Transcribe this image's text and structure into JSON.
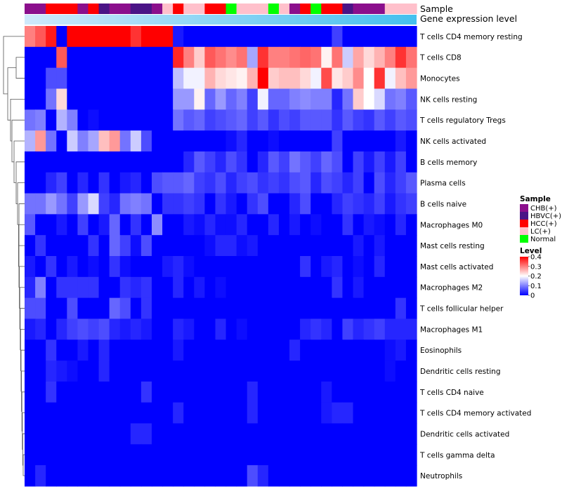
{
  "chart_data": {
    "type": "heatmap",
    "title": "",
    "annotation_labels": {
      "sample": "Sample",
      "gene_expression": "Gene expression level"
    },
    "rows": [
      "T cells CD4 memory resting",
      "T cells CD8",
      "Monocytes",
      "NK cells resting",
      "T cells regulatory  Tregs",
      "NK cells activated",
      "B cells memory",
      "Plasma cells",
      "B cells naive",
      "Macrophages M0",
      "Mast cells resting",
      "Mast cells activated",
      "Macrophages M2",
      "T cells follicular helper",
      "Macrophages M1",
      "Eosinophils",
      "Dendritic cells resting",
      "T cells CD4 naive",
      "T cells CD4 memory activated",
      "Dendritic cells activated",
      "T cells gamma delta",
      "Neutrophils"
    ],
    "sample_groups": [
      "CHB(+)",
      "CHB(+)",
      "HCC(+)",
      "HCC(+)",
      "HCC(+)",
      "CHB(+)",
      "HCC(+)",
      "HBVC(+)",
      "CHB(+)",
      "CHB(+)",
      "HBVC(+)",
      "HBVC(+)",
      "CHB(+)",
      "LC(+)",
      "HCC(+)",
      "LC(+)",
      "LC(+)",
      "HCC(+)",
      "HCC(+)",
      "Normal",
      "LC(+)",
      "LC(+)",
      "LC(+)",
      "Normal",
      "LC(+)",
      "CHB(+)",
      "HCC(+)",
      "Normal",
      "HCC(+)",
      "HCC(+)",
      "HBVC(+)",
      "CHB(+)",
      "CHB(+)",
      "CHB(+)",
      "LC(+)",
      "LC(+)",
      "LC(+)"
    ],
    "values": [
      [
        0.3,
        0.33,
        0.38,
        0.0,
        0.4,
        0.4,
        0.4,
        0.4,
        0.4,
        0.4,
        0.36,
        0.4,
        0.4,
        0.4,
        0.02,
        0.0,
        0.0,
        0.0,
        0.0,
        0.0,
        0.0,
        0.0,
        0.0,
        0.0,
        0.0,
        0.0,
        0.0,
        0.0,
        0.0,
        0.05,
        0.0,
        0.0,
        0.0,
        0.0,
        0.0,
        0.0,
        0.0
      ],
      [
        0.0,
        0.0,
        0.0,
        0.33,
        0.0,
        0.0,
        0.0,
        0.0,
        0.0,
        0.0,
        0.0,
        0.0,
        0.0,
        0.0,
        0.37,
        0.3,
        0.24,
        0.33,
        0.31,
        0.29,
        0.31,
        0.13,
        0.36,
        0.3,
        0.3,
        0.31,
        0.32,
        0.31,
        0.21,
        0.31,
        0.16,
        0.27,
        0.23,
        0.26,
        0.3,
        0.36,
        0.31
      ],
      [
        0.0,
        0.0,
        0.06,
        0.06,
        0.0,
        0.0,
        0.0,
        0.0,
        0.0,
        0.0,
        0.0,
        0.0,
        0.0,
        0.0,
        0.15,
        0.19,
        0.19,
        0.26,
        0.23,
        0.22,
        0.21,
        0.26,
        0.4,
        0.24,
        0.25,
        0.25,
        0.23,
        0.19,
        0.34,
        0.22,
        0.24,
        0.29,
        0.2,
        0.36,
        0.19,
        0.25,
        0.28
      ],
      [
        0.0,
        0.0,
        0.09,
        0.23,
        0.0,
        0.0,
        0.0,
        0.0,
        0.0,
        0.0,
        0.0,
        0.0,
        0.0,
        0.0,
        0.12,
        0.12,
        0.21,
        0.08,
        0.12,
        0.08,
        0.1,
        0.05,
        0.19,
        0.08,
        0.08,
        0.1,
        0.11,
        0.1,
        0.1,
        0.03,
        0.09,
        0.24,
        0.2,
        0.17,
        0.09,
        0.1,
        0.07
      ],
      [
        0.09,
        0.1,
        0.0,
        0.14,
        0.1,
        0.0,
        0.01,
        0.0,
        0.0,
        0.0,
        0.0,
        0.0,
        0.0,
        0.0,
        0.09,
        0.07,
        0.08,
        0.05,
        0.06,
        0.07,
        0.08,
        0.05,
        0.07,
        0.04,
        0.06,
        0.05,
        0.07,
        0.07,
        0.07,
        0.04,
        0.07,
        0.05,
        0.04,
        0.07,
        0.05,
        0.07,
        0.06
      ],
      [
        0.14,
        0.28,
        0.09,
        0.0,
        0.16,
        0.1,
        0.13,
        0.25,
        0.28,
        0.09,
        0.16,
        0.06,
        0.0,
        0.0,
        0.0,
        0.0,
        0.0,
        0.0,
        0.0,
        0.01,
        0.03,
        0.0,
        0.0,
        0.01,
        0.0,
        0.0,
        0.0,
        0.0,
        0.0,
        0.05,
        0.0,
        0.0,
        0.0,
        0.0,
        0.0,
        0.02,
        0.0
      ],
      [
        0.0,
        0.0,
        0.0,
        0.0,
        0.0,
        0.0,
        0.0,
        0.0,
        0.0,
        0.0,
        0.0,
        0.0,
        0.0,
        0.0,
        0.0,
        0.03,
        0.07,
        0.05,
        0.03,
        0.06,
        0.04,
        0.0,
        0.03,
        0.07,
        0.05,
        0.09,
        0.07,
        0.05,
        0.08,
        0.06,
        0.0,
        0.05,
        0.02,
        0.05,
        0.02,
        0.05,
        0.0
      ],
      [
        0.0,
        0.0,
        0.03,
        0.05,
        0.0,
        0.03,
        0.0,
        0.04,
        0.0,
        0.02,
        0.03,
        0.0,
        0.06,
        0.07,
        0.07,
        0.08,
        0.05,
        0.04,
        0.06,
        0.03,
        0.05,
        0.06,
        0.04,
        0.05,
        0.04,
        0.06,
        0.07,
        0.03,
        0.06,
        0.05,
        0.03,
        0.05,
        0.0,
        0.06,
        0.03,
        0.05,
        0.07
      ],
      [
        0.09,
        0.09,
        0.12,
        0.09,
        0.05,
        0.12,
        0.17,
        0.05,
        0.03,
        0.09,
        0.1,
        0.09,
        0.0,
        0.04,
        0.04,
        0.05,
        0.04,
        0.0,
        0.04,
        0.02,
        0.0,
        0.04,
        0.06,
        0.0,
        0.0,
        0.03,
        0.06,
        0.0,
        0.0,
        0.03,
        0.05,
        0.04,
        0.03,
        0.05,
        0.02,
        0.04,
        0.05
      ],
      [
        0.07,
        0.0,
        0.0,
        0.02,
        0.0,
        0.05,
        0.0,
        0.02,
        0.08,
        0.0,
        0.04,
        0.0,
        0.11,
        0.0,
        0.0,
        0.02,
        0.01,
        0.03,
        0.01,
        0.01,
        0.03,
        0.0,
        0.0,
        0.03,
        0.0,
        0.02,
        0.0,
        0.01,
        0.0,
        0.0,
        0.04,
        0.0,
        0.02,
        0.01,
        0.0,
        0.03,
        0.0
      ],
      [
        0.0,
        0.04,
        0.0,
        0.0,
        0.0,
        0.0,
        0.04,
        0.0,
        0.08,
        0.05,
        0.01,
        0.06,
        0.0,
        0.0,
        0.0,
        0.0,
        0.0,
        0.01,
        0.03,
        0.03,
        0.01,
        0.02,
        0.0,
        0.0,
        0.0,
        0.0,
        0.0,
        0.0,
        0.0,
        0.0,
        0.0,
        0.02,
        0.0,
        0.02,
        0.0,
        0.0,
        0.0
      ],
      [
        0.02,
        0.0,
        0.04,
        0.0,
        0.02,
        0.0,
        0.01,
        0.0,
        0.04,
        0.01,
        0.0,
        0.0,
        0.0,
        0.02,
        0.03,
        0.01,
        0.0,
        0.0,
        0.0,
        0.0,
        0.0,
        0.0,
        0.0,
        0.0,
        0.0,
        0.0,
        0.04,
        0.0,
        0.02,
        0.03,
        0.0,
        0.01,
        0.0,
        0.03,
        0.0,
        0.0,
        0.0
      ],
      [
        0.03,
        0.1,
        0.0,
        0.04,
        0.04,
        0.04,
        0.04,
        0.0,
        0.0,
        0.04,
        0.03,
        0.04,
        0.0,
        0.0,
        0.03,
        0.0,
        0.02,
        0.0,
        0.01,
        0.0,
        0.0,
        0.0,
        0.0,
        0.0,
        0.0,
        0.0,
        0.0,
        0.0,
        0.0,
        0.04,
        0.0,
        0.02,
        0.0,
        0.0,
        0.0,
        0.0,
        0.0
      ],
      [
        0.06,
        0.06,
        0.0,
        0.0,
        0.06,
        0.0,
        0.0,
        0.0,
        0.08,
        0.06,
        0.0,
        0.04,
        0.0,
        0.0,
        0.0,
        0.0,
        0.0,
        0.0,
        0.0,
        0.0,
        0.0,
        0.0,
        0.0,
        0.0,
        0.0,
        0.0,
        0.0,
        0.0,
        0.0,
        0.0,
        0.0,
        0.0,
        0.0,
        0.0,
        0.0,
        0.04,
        0.0
      ],
      [
        0.02,
        0.03,
        0.0,
        0.03,
        0.05,
        0.06,
        0.05,
        0.06,
        0.03,
        0.02,
        0.03,
        0.02,
        0.0,
        0.0,
        0.03,
        0.02,
        0.0,
        0.0,
        0.03,
        0.0,
        0.01,
        0.0,
        0.0,
        0.0,
        0.0,
        0.0,
        0.03,
        0.04,
        0.03,
        0.0,
        0.05,
        0.03,
        0.04,
        0.05,
        0.03,
        0.03,
        0.03
      ],
      [
        0.0,
        0.0,
        0.04,
        0.0,
        0.0,
        0.02,
        0.0,
        0.03,
        0.0,
        0.0,
        0.0,
        0.0,
        0.0,
        0.0,
        0.02,
        0.0,
        0.0,
        0.0,
        0.0,
        0.0,
        0.0,
        0.0,
        0.0,
        0.0,
        0.0,
        0.03,
        0.0,
        0.0,
        0.0,
        0.0,
        0.0,
        0.0,
        0.0,
        0.0,
        0.01,
        0.02,
        0.0
      ],
      [
        0.0,
        0.0,
        0.03,
        0.02,
        0.01,
        0.0,
        0.0,
        0.03,
        0.0,
        0.0,
        0.0,
        0.0,
        0.0,
        0.0,
        0.0,
        0.0,
        0.0,
        0.0,
        0.0,
        0.0,
        0.0,
        0.0,
        0.0,
        0.0,
        0.0,
        0.0,
        0.0,
        0.0,
        0.0,
        0.0,
        0.0,
        0.0,
        0.0,
        0.0,
        0.01,
        0.0,
        0.0
      ],
      [
        0.0,
        0.0,
        0.04,
        0.0,
        0.0,
        0.0,
        0.0,
        0.0,
        0.0,
        0.0,
        0.0,
        0.04,
        0.0,
        0.0,
        0.0,
        0.0,
        0.0,
        0.0,
        0.0,
        0.0,
        0.0,
        0.03,
        0.0,
        0.0,
        0.0,
        0.0,
        0.0,
        0.0,
        0.02,
        0.0,
        0.0,
        0.0,
        0.0,
        0.0,
        0.0,
        0.0,
        0.0
      ],
      [
        0.0,
        0.0,
        0.0,
        0.0,
        0.0,
        0.0,
        0.0,
        0.0,
        0.0,
        0.0,
        0.0,
        0.0,
        0.0,
        0.0,
        0.03,
        0.0,
        0.0,
        0.0,
        0.0,
        0.0,
        0.0,
        0.03,
        0.0,
        0.0,
        0.0,
        0.0,
        0.0,
        0.0,
        0.02,
        0.03,
        0.03,
        0.0,
        0.0,
        0.0,
        0.0,
        0.0,
        0.0
      ],
      [
        0.0,
        0.0,
        0.0,
        0.0,
        0.0,
        0.0,
        0.0,
        0.0,
        0.0,
        0.0,
        0.03,
        0.03,
        0.0,
        0.0,
        0.0,
        0.0,
        0.0,
        0.0,
        0.0,
        0.0,
        0.0,
        0.0,
        0.0,
        0.0,
        0.0,
        0.0,
        0.0,
        0.0,
        0.0,
        0.0,
        0.0,
        0.0,
        0.0,
        0.0,
        0.0,
        0.0,
        0.0
      ],
      [
        0.0,
        0.0,
        0.0,
        0.0,
        0.0,
        0.0,
        0.0,
        0.0,
        0.0,
        0.0,
        0.0,
        0.0,
        0.0,
        0.0,
        0.0,
        0.0,
        0.0,
        0.0,
        0.0,
        0.0,
        0.0,
        0.0,
        0.0,
        0.0,
        0.0,
        0.0,
        0.0,
        0.0,
        0.0,
        0.0,
        0.0,
        0.0,
        0.0,
        0.0,
        0.0,
        0.0,
        0.0
      ],
      [
        0.0,
        0.03,
        0.0,
        0.0,
        0.0,
        0.0,
        0.0,
        0.0,
        0.0,
        0.0,
        0.0,
        0.0,
        0.0,
        0.0,
        0.0,
        0.0,
        0.0,
        0.0,
        0.0,
        0.0,
        0.0,
        0.06,
        0.03,
        0.0,
        0.0,
        0.0,
        0.0,
        0.0,
        0.0,
        0.0,
        0.0,
        0.0,
        0.0,
        0.0,
        0.0,
        0.0,
        0.0
      ]
    ],
    "color_scale": {
      "min": 0,
      "max": 0.4,
      "stops": [
        {
          "value": 0,
          "color": "#0000ff"
        },
        {
          "value": 0.2,
          "color": "#ffffff"
        },
        {
          "value": 0.4,
          "color": "#ff0000"
        }
      ]
    },
    "expression_annotation_colors": {
      "low": "#cfe9fb",
      "high": "#44c0ee"
    },
    "legends": {
      "sample": {
        "title": "Sample",
        "entries": [
          {
            "label": "CHB(+)",
            "color": "#8b0f8c"
          },
          {
            "label": "HBVC(+)",
            "color": "#4a1486"
          },
          {
            "label": "HCC(+)",
            "color": "#ff0000"
          },
          {
            "label": "LC(+)",
            "color": "#ffc0cb"
          },
          {
            "label": "Normal",
            "color": "#00ff00"
          }
        ]
      },
      "level": {
        "title": "Level",
        "ticks": [
          "0.4",
          "0.3",
          "0.2",
          "0.1",
          "0"
        ],
        "tick_values": [
          0.4,
          0.3,
          0.2,
          0.1,
          0
        ]
      }
    },
    "row_dendrogram": true,
    "column_dendrogram": false
  }
}
